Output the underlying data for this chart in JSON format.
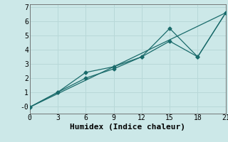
{
  "xlabel": "Humidex (Indice chaleur)",
  "background_color": "#cce8e8",
  "line_color": "#1a6b6b",
  "xlim": [
    0,
    21
  ],
  "ylim": [
    -0.5,
    7.2
  ],
  "xticks": [
    0,
    3,
    6,
    9,
    12,
    15,
    18,
    21
  ],
  "yticks": [
    0,
    1,
    2,
    3,
    4,
    5,
    6,
    7
  ],
  "ytick_labels": [
    "-0",
    "1",
    "2",
    "3",
    "4",
    "5",
    "6",
    "7"
  ],
  "line1_x": [
    0,
    3,
    6,
    9,
    12,
    15,
    18,
    21
  ],
  "line1_y": [
    -0.05,
    1.0,
    2.4,
    2.8,
    3.5,
    5.5,
    3.5,
    6.6
  ],
  "line2_x": [
    0,
    3,
    6,
    9,
    12,
    15,
    18,
    21
  ],
  "line2_y": [
    -0.05,
    1.0,
    2.0,
    2.65,
    3.5,
    4.6,
    3.5,
    6.6
  ],
  "line3_x": [
    0,
    21
  ],
  "line3_y": [
    -0.05,
    6.6
  ],
  "grid_color": "#b8d8d8",
  "marker": "D",
  "marker_size": 2.5,
  "xlabel_fontsize": 8,
  "tick_fontsize": 7,
  "linewidth": 0.9
}
